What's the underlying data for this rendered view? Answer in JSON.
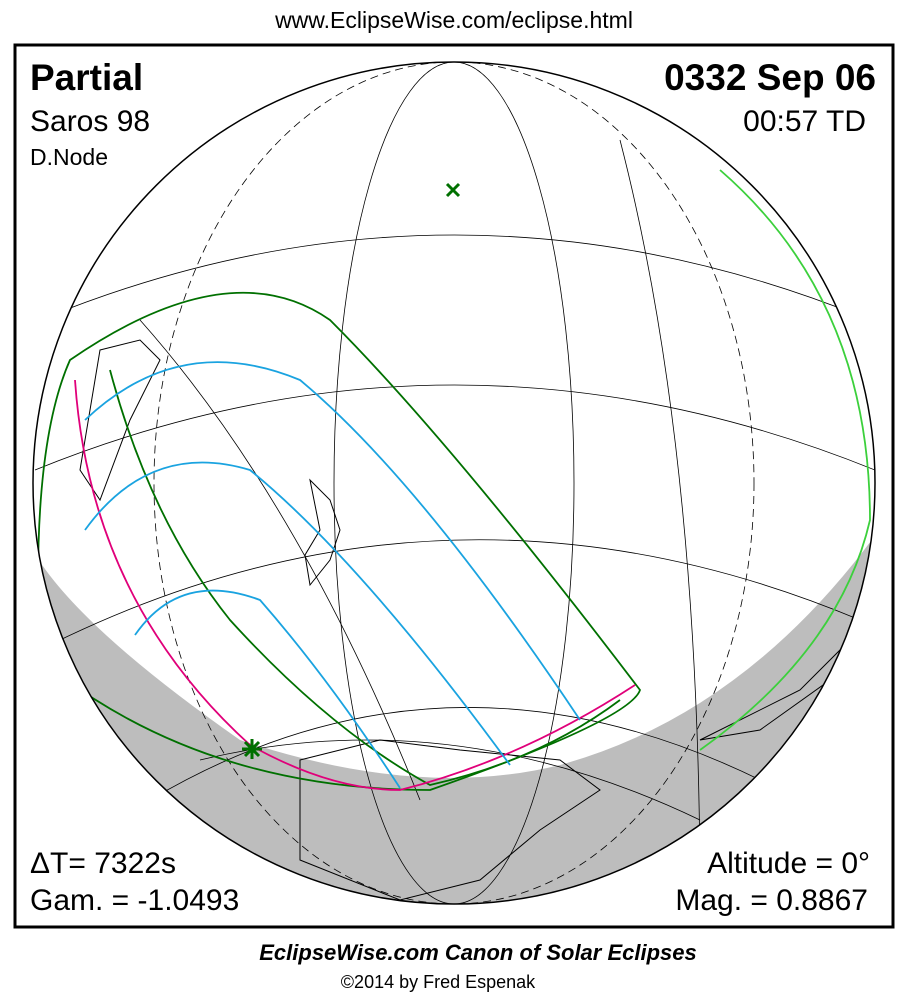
{
  "header": {
    "url": "www.EclipseWise.com/eclipse.html"
  },
  "panel": {
    "eclipse_type": "Partial",
    "date": "0332 Sep 06",
    "saros": "Saros  98",
    "time": "00:57 TD",
    "node": "D.Node",
    "delta_t": "ΔT=   7322s",
    "gamma": "Gam. = -1.0493",
    "altitude": "Altitude =  0°",
    "magnitude": "Mag. = 0.8867"
  },
  "footer": {
    "title": "EclipseWise.com Canon of Solar Eclipses",
    "copyright": "©2014 by Fred Espenak"
  }
}
